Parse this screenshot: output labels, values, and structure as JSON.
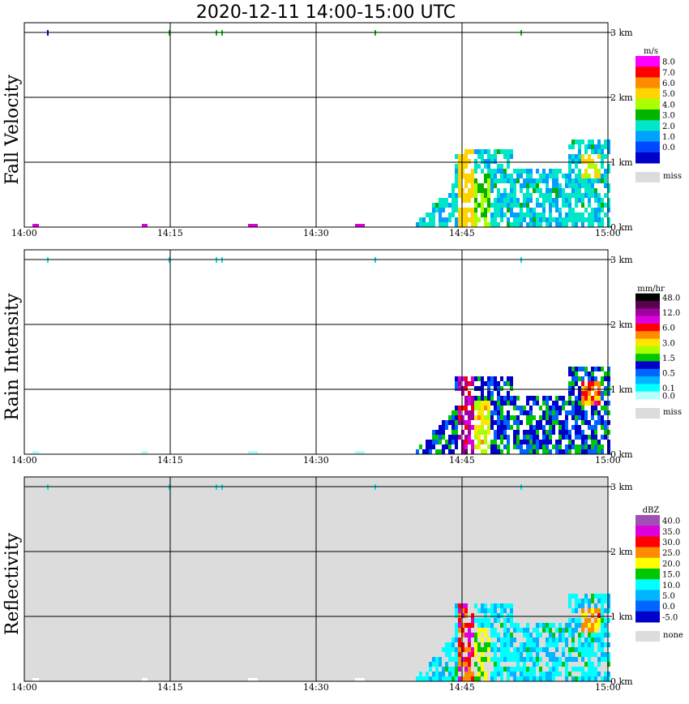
{
  "chart_data": {
    "title": "2020-12-11   14:00-15:00 UTC",
    "type": "heatmap",
    "x_ticks": [
      "14:00",
      "14:15",
      "14:30",
      "14:45",
      "15:00"
    ],
    "y_ticks": [
      "0 km",
      "1 km",
      "2 km",
      "3 km"
    ],
    "panels": [
      {
        "name": "Fall Velocity",
        "unit": "m/s",
        "background": "#ffffff",
        "colorbar": [
          {
            "label": "8.0",
            "color": "#ff00ff"
          },
          {
            "label": "7.0",
            "color": "#ff0000"
          },
          {
            "label": "6.0",
            "color": "#ff8c00"
          },
          {
            "label": "5.0",
            "color": "#ffd400"
          },
          {
            "label": "4.0",
            "color": "#aaff00"
          },
          {
            "label": "3.0",
            "color": "#00b400"
          },
          {
            "label": "2.0",
            "color": "#00e6c8"
          },
          {
            "label": "1.0",
            "color": "#00a0ff"
          },
          {
            "label": "0.0",
            "color": "#0048ff"
          },
          {
            "label": "",
            "color": "#0000c8"
          }
        ],
        "miss_label": "miss"
      },
      {
        "name": "Rain Intensity",
        "unit": "mm/hr",
        "background": "#ffffff",
        "colorbar": [
          {
            "label": "48.0",
            "color": "#000000"
          },
          {
            "label": "",
            "color": "#5a0050"
          },
          {
            "label": "12.0",
            "color": "#a000a0"
          },
          {
            "label": "",
            "color": "#dc00dc"
          },
          {
            "label": "6.0",
            "color": "#ff0000"
          },
          {
            "label": "",
            "color": "#ff8c00"
          },
          {
            "label": "3.0",
            "color": "#ffe600"
          },
          {
            "label": "",
            "color": "#aaff00"
          },
          {
            "label": "1.5",
            "color": "#00c800"
          },
          {
            "label": "",
            "color": "#0000c8"
          },
          {
            "label": "0.5",
            "color": "#0064ff"
          },
          {
            "label": "",
            "color": "#00b4ff"
          },
          {
            "label": "0.1",
            "color": "#00ffff"
          },
          {
            "label": "0.0",
            "color": "#b4ffff"
          }
        ],
        "miss_label": "miss"
      },
      {
        "name": "Reflectivity",
        "unit": "dBZ",
        "background": "#dcdcdc",
        "colorbar": [
          {
            "label": "40.0",
            "color": "#a050b4"
          },
          {
            "label": "35.0",
            "color": "#dc00dc"
          },
          {
            "label": "30.0",
            "color": "#ff0000"
          },
          {
            "label": "25.0",
            "color": "#ff8c00"
          },
          {
            "label": "20.0",
            "color": "#ffff00"
          },
          {
            "label": "15.0",
            "color": "#00c800"
          },
          {
            "label": "10.0",
            "color": "#00ffff"
          },
          {
            "label": "5.0",
            "color": "#00b4ff"
          },
          {
            "label": "0.0",
            "color": "#0064ff"
          },
          {
            "label": "-5.0",
            "color": "#0000c8"
          }
        ],
        "miss_label": "none"
      }
    ]
  }
}
